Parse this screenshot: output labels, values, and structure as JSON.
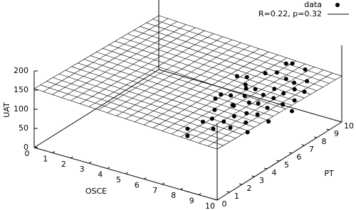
{
  "chart_data": {
    "type": "scatter3d",
    "xlabel": "OSCE",
    "ylabel": "PT",
    "zlabel": "UAT",
    "xlim": [
      0,
      10
    ],
    "ylim": [
      0,
      10
    ],
    "zlim": [
      0,
      200
    ],
    "xticks": [
      0,
      1,
      2,
      3,
      4,
      5,
      6,
      7,
      8,
      9,
      10
    ],
    "yticks": [
      0,
      1,
      2,
      3,
      4,
      5,
      6,
      7,
      8,
      9,
      10
    ],
    "zticks": [
      0,
      50,
      100,
      150,
      200
    ],
    "legend": "top-right",
    "series": [
      {
        "name": "data",
        "color": "#000000",
        "x": [
          6,
          6.2,
          6.5,
          7,
          6.8,
          7.2,
          7.5,
          7.5,
          7.8,
          8,
          7,
          7.3,
          8,
          8.2,
          8.5,
          8.5,
          8.8,
          9,
          9,
          8,
          7.5,
          7.2,
          8.3,
          8.7,
          9.2,
          9.5,
          9.6,
          9,
          8.5,
          9.3,
          9.8,
          9.5,
          9,
          9,
          8,
          7.6,
          6.8,
          6.5,
          7,
          8.8,
          9.4,
          10,
          9.8,
          10,
          7.9
        ],
        "y": [
          3.5,
          3.2,
          4,
          4,
          4.5,
          3.8,
          4.2,
          5,
          4.6,
          4,
          5.5,
          5.2,
          5.5,
          5,
          5.5,
          4.5,
          5,
          5.5,
          6,
          6,
          6,
          6.5,
          6.2,
          6.5,
          6.5,
          6,
          6.8,
          7,
          7,
          7.2,
          7.5,
          7.8,
          7.5,
          7,
          6.8,
          5.8,
          5,
          5,
          6,
          4.2,
          5,
          6,
          6.5,
          7,
          5.3
        ],
        "z": [
          60,
          50,
          75,
          90,
          100,
          70,
          85,
          110,
          95,
          80,
          120,
          105,
          115,
          100,
          120,
          90,
          105,
          115,
          130,
          140,
          135,
          150,
          125,
          140,
          135,
          120,
          145,
          160,
          170,
          150,
          155,
          175,
          190,
          200,
          165,
          150,
          130,
          115,
          160,
          75,
          95,
          110,
          125,
          140,
          135
        ]
      },
      {
        "name": "R=0.22, p=0.32",
        "color": "#000000",
        "z": [
          [
            154,
            141
          ],
          [
            133,
            120
          ]
        ]
      }
    ]
  }
}
